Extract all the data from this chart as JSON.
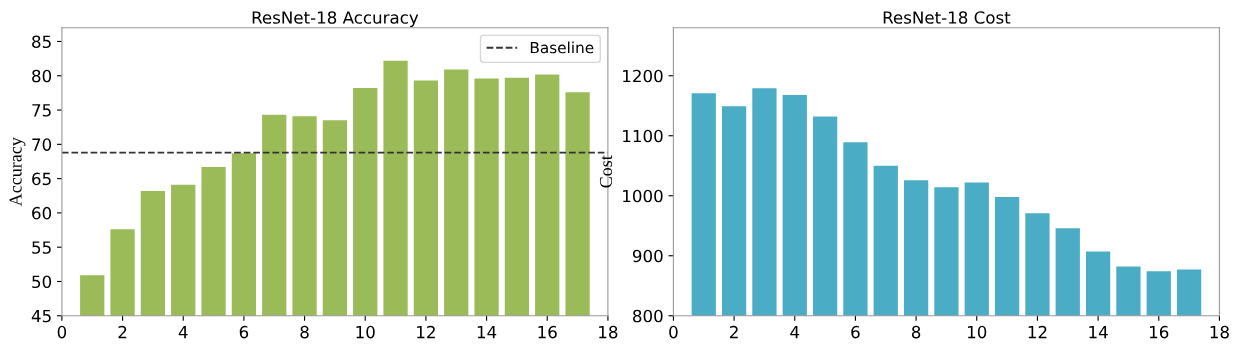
{
  "chart_data": [
    {
      "type": "bar",
      "title": "ResNet-18 Accuracy",
      "ylabel": "Accuracy",
      "x": [
        1,
        2,
        3,
        4,
        5,
        6,
        7,
        8,
        9,
        10,
        11,
        12,
        13,
        14,
        15,
        16,
        17
      ],
      "series": [
        {
          "color": "#9bbb59",
          "values": [
            50.9,
            57.6,
            63.2,
            64.1,
            66.7,
            68.7,
            74.3,
            74.1,
            73.5,
            78.2,
            82.2,
            79.3,
            80.9,
            79.6,
            79.7,
            80.2,
            77.6
          ]
        }
      ],
      "xlim": [
        0,
        18
      ],
      "xticks": [
        0,
        2,
        4,
        6,
        8,
        10,
        12,
        14,
        16,
        18
      ],
      "ylim": [
        45,
        87
      ],
      "yticks": [
        45,
        50,
        55,
        60,
        65,
        70,
        75,
        80,
        85
      ],
      "ref_lines": [
        {
          "axis": "y",
          "value": 68.8,
          "label": "Baseline",
          "color": "#333333",
          "line_style": "dashed"
        }
      ],
      "legend": "top right",
      "grid": false
    },
    {
      "type": "bar",
      "title": "ResNet-18 Cost",
      "ylabel": "Cost",
      "x": [
        1,
        2,
        3,
        4,
        5,
        6,
        7,
        8,
        9,
        10,
        11,
        12,
        13,
        14,
        15,
        16,
        17
      ],
      "series": [
        {
          "color": "#4bacc6",
          "values": [
            1171,
            1149,
            1179,
            1168,
            1132,
            1089,
            1050,
            1026,
            1014,
            1022,
            998,
            971,
            946,
            907,
            882,
            874,
            877
          ]
        }
      ],
      "xlim": [
        0,
        18
      ],
      "xticks": [
        0,
        2,
        4,
        6,
        8,
        10,
        12,
        14,
        16,
        18
      ],
      "ylim": [
        800,
        1280
      ],
      "yticks": [
        800,
        900,
        1000,
        1100,
        1200
      ],
      "grid": false
    }
  ]
}
